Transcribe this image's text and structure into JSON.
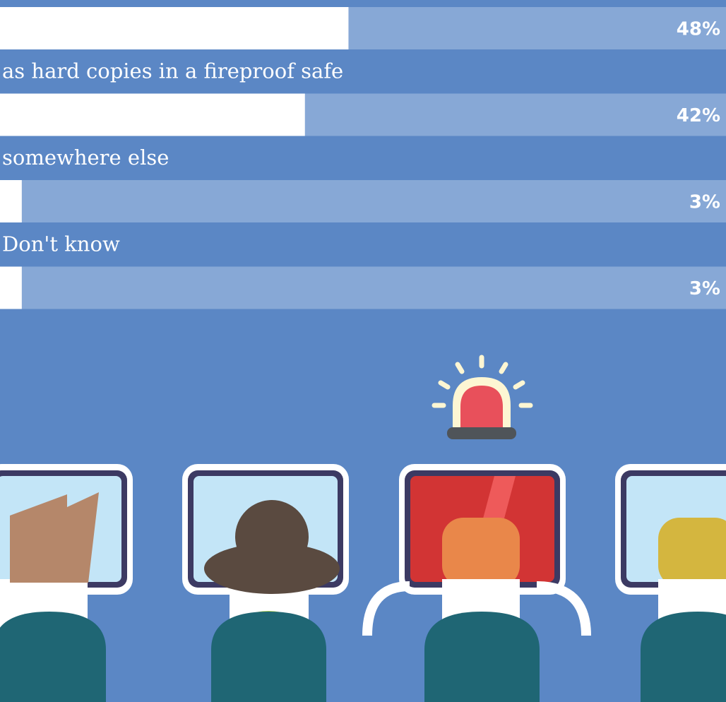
{
  "chart_data": {
    "type": "bar",
    "categories": [
      null,
      "as hard copies in a fireproof safe",
      "somewhere else",
      "Don't know"
    ],
    "values": [
      48,
      42,
      3,
      3
    ],
    "value_labels": [
      "48%",
      "42%",
      "3%",
      "3%"
    ],
    "xlim": [
      0,
      100
    ],
    "color": "#ffffff"
  }
}
